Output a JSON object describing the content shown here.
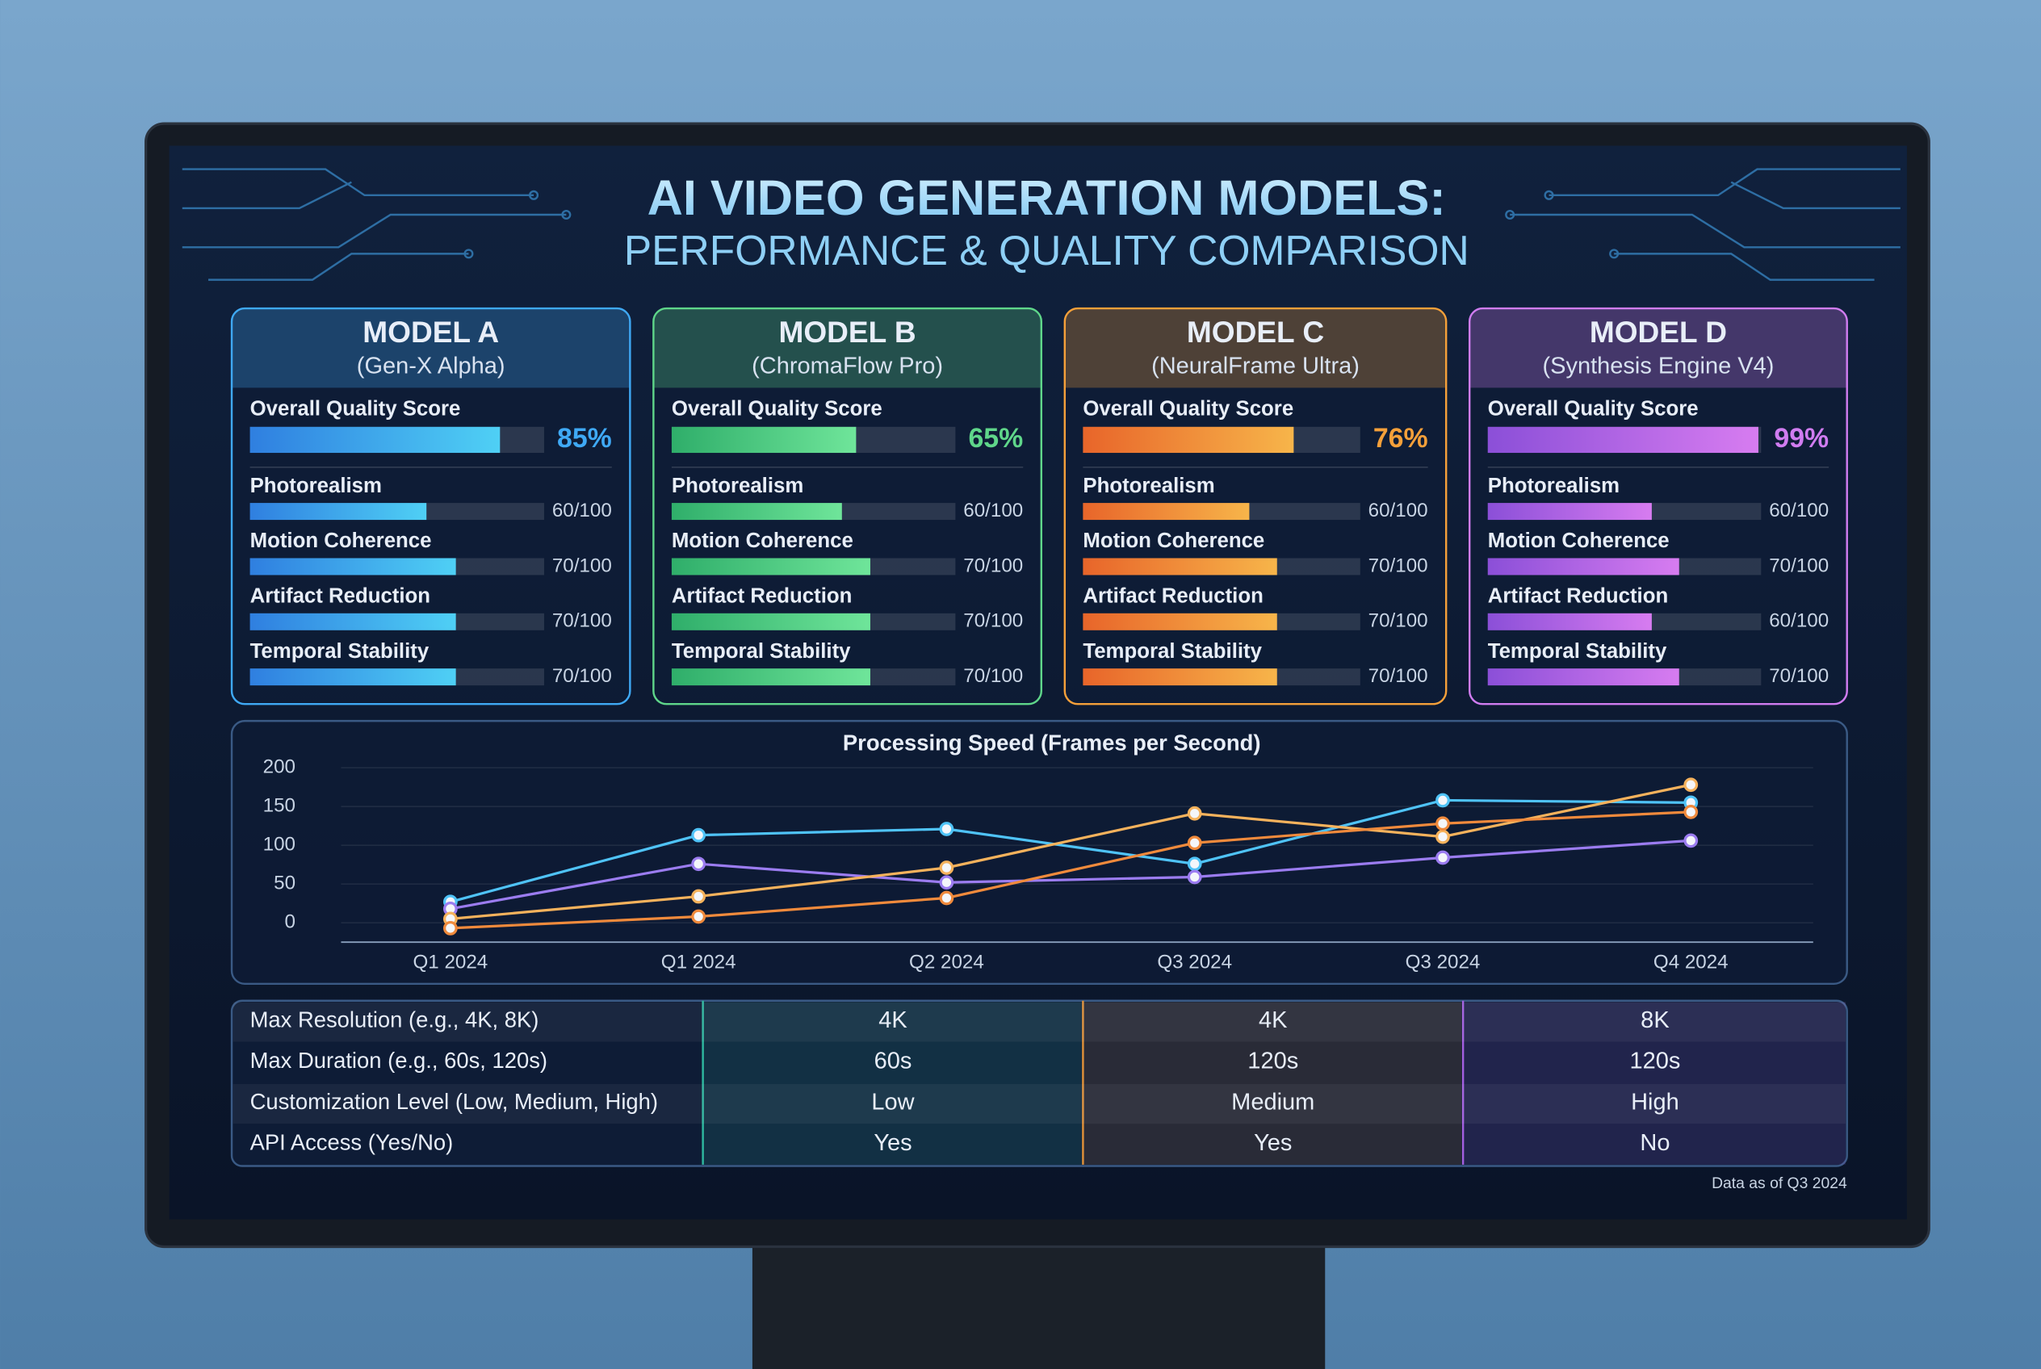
{
  "header": {
    "title": "AI VIDEO GENERATION MODELS:",
    "subtitle": "PERFORMANCE & QUALITY COMPARISON"
  },
  "models": [
    {
      "name": "MODEL A",
      "variant": "(Gen-X Alpha)",
      "color": "#3fa9f5",
      "colors": [
        "#2f7fe0",
        "#4fd0f5"
      ],
      "overall": {
        "label": "Overall Quality Score",
        "value": 85,
        "value_label": "85%"
      },
      "metrics": [
        {
          "name": "Photorealism",
          "value": 60,
          "value_label": "60/100"
        },
        {
          "name": "Motion Coherence",
          "value": 70,
          "value_label": "70/100"
        },
        {
          "name": "Artifact Reduction",
          "value": 70,
          "value_label": "70/100"
        },
        {
          "name": "Temporal Stability",
          "value": 70,
          "value_label": "70/100"
        }
      ]
    },
    {
      "name": "MODEL B",
      "variant": "(ChromaFlow Pro)",
      "color": "#5fd68a",
      "colors": [
        "#2fae6a",
        "#6fe59a"
      ],
      "overall": {
        "label": "Overall Quality Score",
        "value": 65,
        "value_label": "65%"
      },
      "metrics": [
        {
          "name": "Photorealism",
          "value": 60,
          "value_label": "60/100"
        },
        {
          "name": "Motion Coherence",
          "value": 70,
          "value_label": "70/100"
        },
        {
          "name": "Artifact Reduction",
          "value": 70,
          "value_label": "70/100"
        },
        {
          "name": "Temporal Stability",
          "value": 70,
          "value_label": "70/100"
        }
      ]
    },
    {
      "name": "MODEL C",
      "variant": "(NeuralFrame Ultra)",
      "color": "#f5a03a",
      "colors": [
        "#e8652a",
        "#f7b54a"
      ],
      "overall": {
        "label": "Overall Quality Score",
        "value": 76,
        "value_label": "76%"
      },
      "metrics": [
        {
          "name": "Photorealism",
          "value": 60,
          "value_label": "60/100"
        },
        {
          "name": "Motion Coherence",
          "value": 70,
          "value_label": "70/100"
        },
        {
          "name": "Artifact Reduction",
          "value": 70,
          "value_label": "70/100"
        },
        {
          "name": "Temporal Stability",
          "value": 70,
          "value_label": "70/100"
        }
      ]
    },
    {
      "name": "MODEL D",
      "variant": "(Synthesis Engine V4)",
      "color": "#d07cf0",
      "colors": [
        "#8b4fd8",
        "#d77cf0"
      ],
      "overall": {
        "label": "Overall Quality Score",
        "value": 99,
        "value_label": "99%"
      },
      "metrics": [
        {
          "name": "Photorealism",
          "value": 60,
          "value_label": "60/100"
        },
        {
          "name": "Motion Coherence",
          "value": 70,
          "value_label": "70/100"
        },
        {
          "name": "Artifact Reduction",
          "value": 60,
          "value_label": "60/100"
        },
        {
          "name": "Temporal Stability",
          "value": 70,
          "value_label": "70/100"
        }
      ]
    }
  ],
  "chart_data": {
    "type": "line",
    "title": "Processing Speed (Frames per Second)",
    "categories": [
      "Q1 2024",
      "Q1 2024",
      "Q2 2024",
      "Q3 2024",
      "Q3 2024",
      "Q4 2024"
    ],
    "series": [
      {
        "color": "#4fc3f7",
        "values": [
          27,
          113,
          121,
          76,
          158,
          155
        ]
      },
      {
        "color": "#9b7cf0",
        "values": [
          18,
          76,
          52,
          59,
          84,
          106
        ]
      },
      {
        "color": "#f5b25c",
        "values": [
          5,
          34,
          71,
          141,
          111,
          178
        ]
      },
      {
        "color": "#f08a3c",
        "values": [
          -7,
          8,
          32,
          103,
          128,
          143
        ]
      }
    ],
    "ylim": [
      -25,
      210
    ],
    "yticks": [
      0,
      50,
      100,
      150,
      200
    ],
    "grid": true
  },
  "table": {
    "rows": [
      [
        "Max Resolution (e.g., 4K, 8K)",
        "4K",
        "4K",
        "8K"
      ],
      [
        "Max Duration (e.g., 60s, 120s)",
        "60s",
        "120s",
        "120s"
      ],
      [
        "Customization Level (Low, Medium, High)",
        "Low",
        "Medium",
        "High"
      ],
      [
        "API Access (Yes/No)",
        "Yes",
        "Yes",
        "No"
      ]
    ],
    "column_colors": [
      "#2fb8a0",
      "#e0913a",
      "#a35fe0"
    ]
  },
  "footnote": "Data as of Q3 2024"
}
